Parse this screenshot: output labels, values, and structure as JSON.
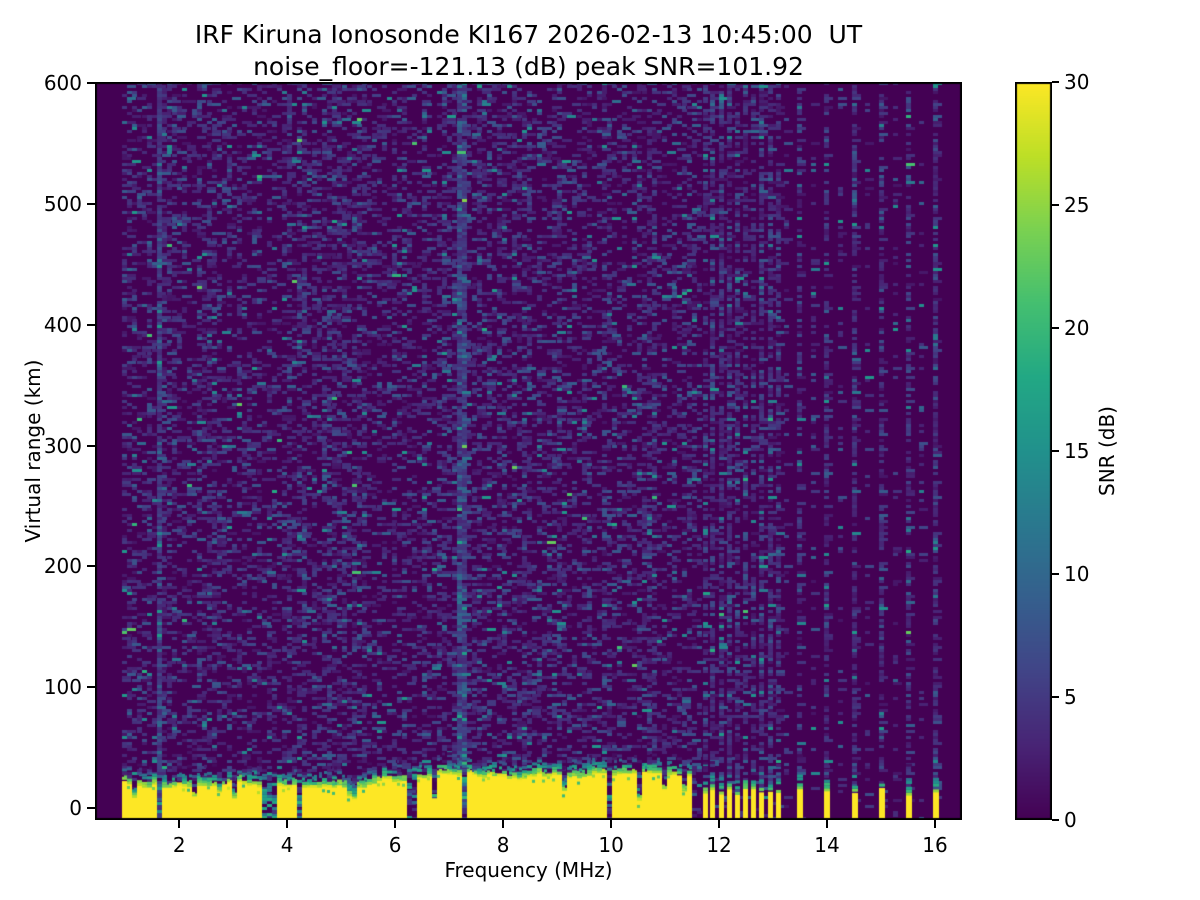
{
  "figure": {
    "title": "IRF Kiruna Ionosonde KI167 2026-02-13 10:45:00  UT",
    "subtitle": "noise_floor=-121.13 (dB) peak SNR=101.92",
    "xlabel": "Frequency (MHz)",
    "ylabel": "Virtual range (km)",
    "colorbar_label": "SNR (dB)"
  },
  "chart_data": {
    "type": "heatmap",
    "title": "IRF Kiruna Ionosonde KI167 2026-02-13 10:45:00  UT",
    "subtitle": "noise_floor=-121.13 (dB) peak SNR=101.92",
    "xlabel": "Frequency (MHz)",
    "ylabel": "Virtual range (km)",
    "colorbar_label": "SNR (dB)",
    "noise_floor_db": -121.13,
    "peak_snr_db": 101.92,
    "xlim": [
      0.44,
      16.5
    ],
    "ylim": [
      -10,
      601
    ],
    "xticks": [
      2,
      4,
      6,
      8,
      10,
      12,
      14,
      16
    ],
    "yticks": [
      0,
      100,
      200,
      300,
      400,
      500,
      600
    ],
    "colorbar_ticks": [
      0,
      5,
      10,
      15,
      20,
      25,
      30
    ],
    "clim": [
      0,
      30
    ],
    "grid": false,
    "legend": "none (colorbar on right)",
    "colormap": "viridis",
    "colormap_stops": [
      [
        0.0,
        "#440154"
      ],
      [
        0.1,
        "#482475"
      ],
      [
        0.2,
        "#414487"
      ],
      [
        0.3,
        "#355f8d"
      ],
      [
        0.4,
        "#2a788e"
      ],
      [
        0.5,
        "#21918c"
      ],
      [
        0.6,
        "#22a884"
      ],
      [
        0.7,
        "#44bf70"
      ],
      [
        0.8,
        "#7ad151"
      ],
      [
        0.9,
        "#bddf26"
      ],
      [
        1.0,
        "#fde725"
      ]
    ],
    "structure": {
      "seed": 20260213,
      "background_snr_db": 0,
      "noise_speckle_density": 0.34,
      "freq_start_mhz": 0.94,
      "continuous_band_end_mhz": 11.62,
      "ground_echo_band": {
        "bottom_km": -10,
        "top_km_mean": 24,
        "top_km_min": 18,
        "top_km_max": 30,
        "fringe_thickness_km": 16,
        "band_snr_db": 30
      },
      "deep_notches_mhz": [
        {
          "f": 1.6,
          "w": 0.08
        },
        {
          "f": 3.57,
          "w": 0.1
        },
        {
          "f": 3.74,
          "w": 0.08
        },
        {
          "f": 4.2,
          "w": 0.08
        },
        {
          "f": 6.26,
          "w": 0.08
        },
        {
          "f": 7.22,
          "w": 0.1
        },
        {
          "f": 9.94,
          "w": 0.08
        },
        {
          "f": 11.58,
          "w": 0.14
        }
      ],
      "medium_notches_mhz": [
        {
          "f": 1.09,
          "w": 0.06
        },
        {
          "f": 2.26,
          "w": 0.07
        },
        {
          "f": 3.0,
          "w": 0.08
        },
        {
          "f": 5.15,
          "w": 0.08
        },
        {
          "f": 6.65,
          "w": 0.06
        },
        {
          "f": 10.5,
          "w": 0.06
        }
      ],
      "shallow_notches_mhz": [
        {
          "f": 2.67,
          "w": 0.06
        },
        {
          "f": 9.06,
          "w": 0.07
        },
        {
          "f": 10.96,
          "w": 0.07
        },
        {
          "f": 11.35,
          "w": 0.07
        }
      ],
      "cluster_columns_mhz": [
        11.7,
        11.84,
        11.99,
        12.14,
        12.29,
        12.44,
        12.59,
        12.74,
        12.9,
        13.05
      ],
      "sparse_columns_mhz": [
        13.44,
        13.95,
        14.47,
        14.96,
        15.47,
        15.96
      ],
      "weak_noise_columns_mhz": [
        13.2,
        13.7,
        14.21,
        14.71,
        15.22,
        15.71
      ],
      "interference_lines_mhz": [
        1.6,
        7.19
      ]
    }
  }
}
